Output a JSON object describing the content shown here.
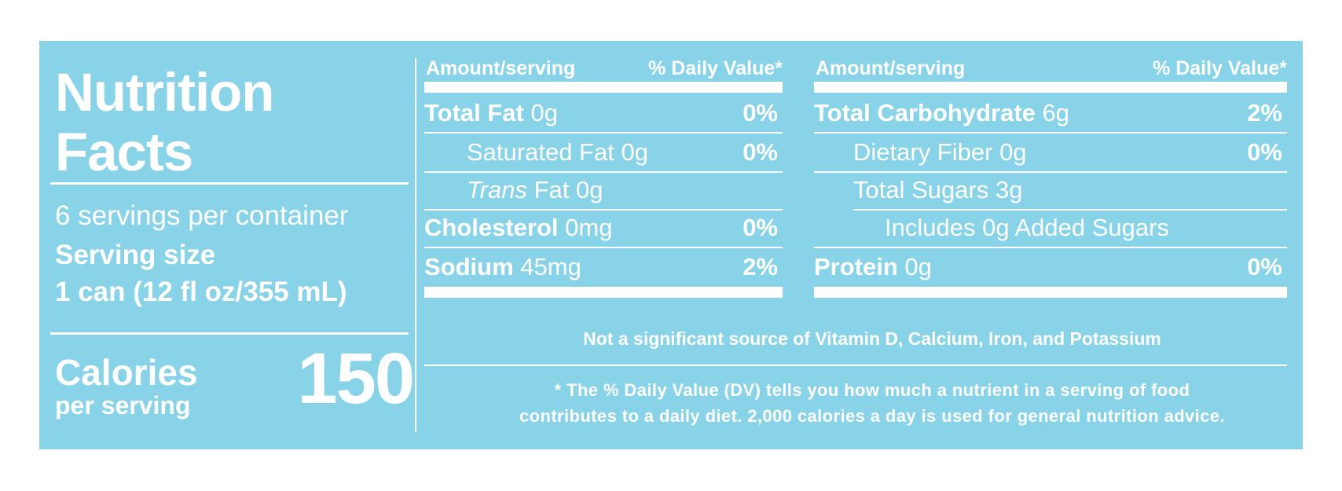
{
  "title": [
    "Nutrition",
    "Facts"
  ],
  "servings_per_container": "6 servings per container",
  "serving_size_label": "Serving size",
  "serving_size_value": "1 can (12 fl oz/355 mL)",
  "calories": {
    "label": "Calories",
    "sub": "per serving",
    "value": "150"
  },
  "header": {
    "amount": "Amount/serving",
    "dv": "% Daily Value*"
  },
  "left_rows": [
    {
      "name": "Total Fat",
      "amount": "0g",
      "pct": "0%"
    },
    {
      "name": "Saturated Fat",
      "amount": "0g",
      "pct": "0%"
    },
    {
      "name": "Trans",
      "amount": "Fat 0g",
      "pct": ""
    },
    {
      "name": "Cholesterol",
      "amount": "0mg",
      "pct": "0%"
    },
    {
      "name": "Sodium",
      "amount": "45mg",
      "pct": "2%"
    }
  ],
  "right_rows": [
    {
      "name": "Total Carbohydrate",
      "amount": "6g",
      "pct": "2%"
    },
    {
      "name": "Dietary Fiber",
      "amount": "0g",
      "pct": "0%"
    },
    {
      "name": "Total Sugars",
      "amount": "3g",
      "pct": ""
    },
    {
      "name": "Includes 0g Added Sugars",
      "amount": "",
      "pct": ""
    },
    {
      "name": "Protein",
      "amount": "0g",
      "pct": "0%"
    }
  ],
  "vitamins_note": "Not a significant source of Vitamin D, Calcium, Iron, and Potassium",
  "footnote": [
    "* The % Daily Value (DV) tells you how much a nutrient in a serving of food",
    "contributes to a daily diet. 2,000 calories a day is used for general nutrition advice."
  ],
  "colors": {
    "label_bg": "#88d3e8",
    "text": "#ffffff"
  }
}
